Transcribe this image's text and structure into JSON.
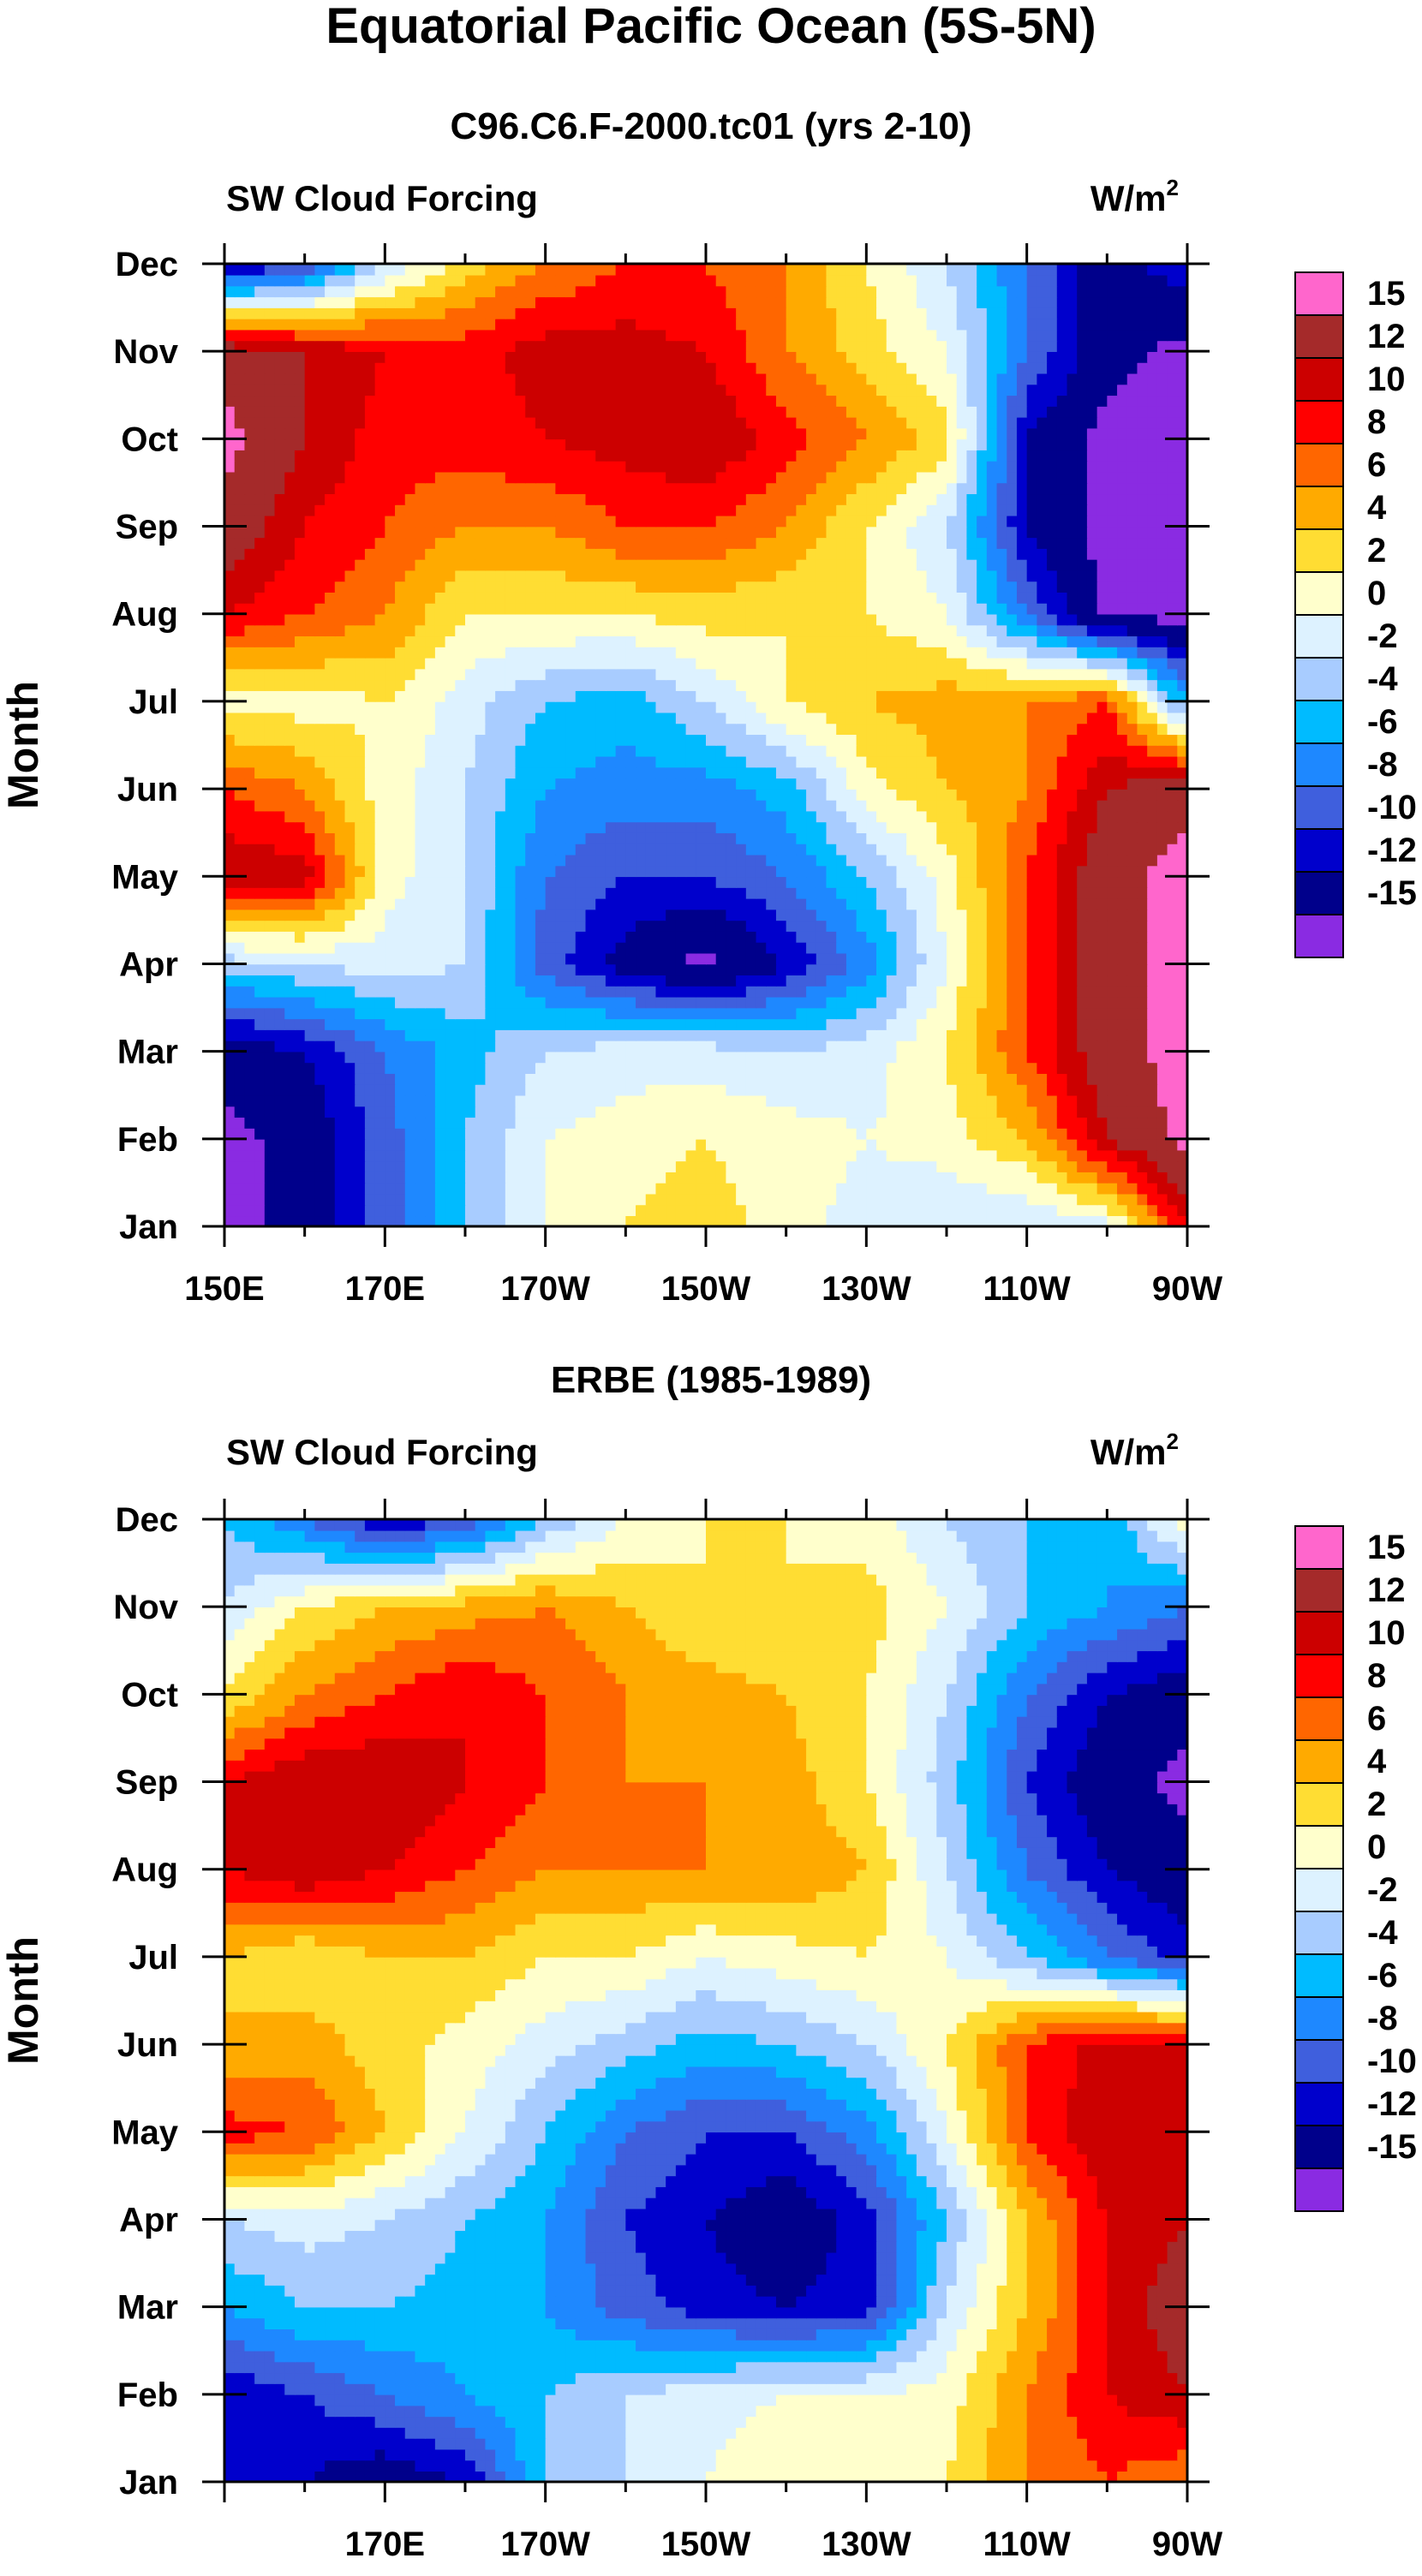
{
  "title": "Equatorial Pacific Ocean (5S-5N)",
  "colorbar": {
    "levels": [
      "15",
      "12",
      "10",
      "8",
      "6",
      "4",
      "2",
      "0",
      "-2",
      "-4",
      "-6",
      "-8",
      "-10",
      "-12",
      "-15"
    ],
    "colors": [
      "#ff66cc",
      "#a52a2a",
      "#cc0000",
      "#ff0000",
      "#ff6600",
      "#ffaa00",
      "#ffdd33",
      "#ffffcc",
      "#ddf2ff",
      "#a8ccff",
      "#00bbff",
      "#1e88ff",
      "#3f5fdd",
      "#0000cc",
      "#00008b",
      "#8a2be2"
    ]
  },
  "chart_data": [
    {
      "type": "heatmap",
      "subtitle": "C96.C6.F-2000.tc01 (yrs 2-10)",
      "left_label": "SW Cloud Forcing",
      "units_base": "W/m",
      "units_exp": "2",
      "ylabel": "Month",
      "xlim": [
        150,
        270
      ],
      "x_unit": "degrees longitude east",
      "yticks": [
        "Jan",
        "Feb",
        "Mar",
        "Apr",
        "May",
        "Jun",
        "Jul",
        "Aug",
        "Sep",
        "Oct",
        "Nov",
        "Dec"
      ],
      "xticks": [
        {
          "lon": 150,
          "label": "150E"
        },
        {
          "lon": 170,
          "label": "170E"
        },
        {
          "lon": 190,
          "label": "170W"
        },
        {
          "lon": 210,
          "label": "150W"
        },
        {
          "lon": 230,
          "label": "130W"
        },
        {
          "lon": 250,
          "label": "110W"
        },
        {
          "lon": 270,
          "label": "90W"
        }
      ],
      "x_grid": [
        150,
        160,
        170,
        180,
        190,
        200,
        210,
        220,
        230,
        240,
        250,
        260,
        270
      ],
      "z": [
        [
          -16,
          -14,
          -9,
          -4,
          0,
          2,
          3,
          1,
          -1,
          -2,
          -2,
          -1,
          10
        ],
        [
          -16,
          -14,
          -9,
          -4,
          0,
          1,
          2,
          1,
          0,
          1,
          4,
          12,
          16
        ],
        [
          -14,
          -12,
          -8,
          -5,
          -2,
          -1,
          -1,
          -2,
          -1,
          2,
          8,
          14,
          16
        ],
        [
          -3,
          -2,
          -1,
          -2,
          -9,
          -13,
          -16,
          -12,
          -7,
          0,
          8,
          14,
          16
        ],
        [
          12,
          11,
          1,
          -2,
          -8,
          -10,
          -10,
          -8,
          -4,
          1,
          8,
          14,
          16
        ],
        [
          8,
          6,
          1,
          -2,
          -6,
          -7,
          -7,
          -5,
          1,
          4,
          6,
          12,
          14
        ],
        [
          1,
          1,
          2,
          -1,
          -4,
          -5,
          -2,
          2,
          4,
          5,
          6,
          8,
          -6
        ],
        [
          10,
          8,
          6,
          2,
          2,
          2,
          3,
          2,
          2,
          0,
          -8,
          -16,
          -16
        ],
        [
          14,
          10,
          8,
          6,
          6,
          8,
          8,
          6,
          2,
          -2,
          -12,
          -16,
          -16
        ],
        [
          16,
          12,
          9,
          9,
          10,
          11,
          12,
          9,
          6,
          3,
          -12,
          -16,
          -16
        ],
        [
          14,
          12,
          10,
          9,
          11,
          11,
          10,
          6,
          3,
          0,
          -8,
          -14,
          -16
        ],
        [
          -13,
          -10,
          -2,
          3,
          6,
          8,
          8,
          6,
          2,
          -2,
          -8,
          -14,
          -10
        ]
      ]
    },
    {
      "type": "heatmap",
      "subtitle": "ERBE (1985-1989)",
      "left_label": "SW Cloud Forcing",
      "units_base": "W/m",
      "units_exp": "2",
      "ylabel": "Month",
      "xlim": [
        150,
        270
      ],
      "x_unit": "degrees longitude east",
      "yticks": [
        "Jan",
        "Feb",
        "Mar",
        "Apr",
        "May",
        "Jun",
        "Jul",
        "Aug",
        "Sep",
        "Oct",
        "Nov",
        "Dec"
      ],
      "xticks": [
        {
          "lon": 170,
          "label": "170E"
        },
        {
          "lon": 190,
          "label": "170W"
        },
        {
          "lon": 210,
          "label": "150W"
        },
        {
          "lon": 230,
          "label": "130W"
        },
        {
          "lon": 250,
          "label": "110W"
        },
        {
          "lon": 270,
          "label": "90W"
        }
      ],
      "x_grid": [
        150,
        160,
        170,
        180,
        190,
        200,
        210,
        220,
        230,
        240,
        250,
        260,
        270
      ],
      "z": [
        [
          -10,
          -12,
          -14,
          -12,
          -4,
          -2,
          0,
          2,
          1,
          2,
          6,
          8,
          6
        ],
        [
          -12,
          -10,
          -8,
          -6,
          -4,
          -2,
          -1,
          0,
          0,
          1,
          6,
          10,
          12
        ],
        [
          -6,
          -4,
          -4,
          -5,
          -6,
          -9,
          -11,
          -12,
          -11,
          -2,
          4,
          10,
          14
        ],
        [
          -2,
          -1,
          -2,
          -4,
          -6,
          -10,
          -12,
          -14,
          -11,
          -4,
          4,
          10,
          12
        ],
        [
          9,
          8,
          4,
          0,
          -4,
          -8,
          -10,
          -10,
          -7,
          0,
          8,
          12,
          12
        ],
        [
          4,
          5,
          3,
          1,
          -1,
          -3,
          -5,
          -4,
          -2,
          2,
          8,
          11,
          10
        ],
        [
          4,
          2,
          4,
          4,
          2,
          2,
          0,
          1,
          2,
          0,
          -4,
          -8,
          -11
        ],
        [
          10,
          12,
          10,
          8,
          6,
          6,
          6,
          6,
          4,
          -2,
          -8,
          -12,
          -14
        ],
        [
          10,
          12,
          12,
          10,
          8,
          6,
          6,
          5,
          2,
          -3,
          -10,
          -14,
          -16
        ],
        [
          2,
          6,
          8,
          10,
          8,
          6,
          5,
          4,
          2,
          -2,
          -8,
          -12,
          -14
        ],
        [
          -2,
          2,
          4,
          5,
          6,
          4,
          2,
          2,
          3,
          0,
          -4,
          -6,
          -8
        ],
        [
          -4,
          -8,
          -12,
          -10,
          -4,
          0,
          2,
          2,
          1,
          -2,
          -4,
          -6,
          2
        ]
      ]
    }
  ]
}
